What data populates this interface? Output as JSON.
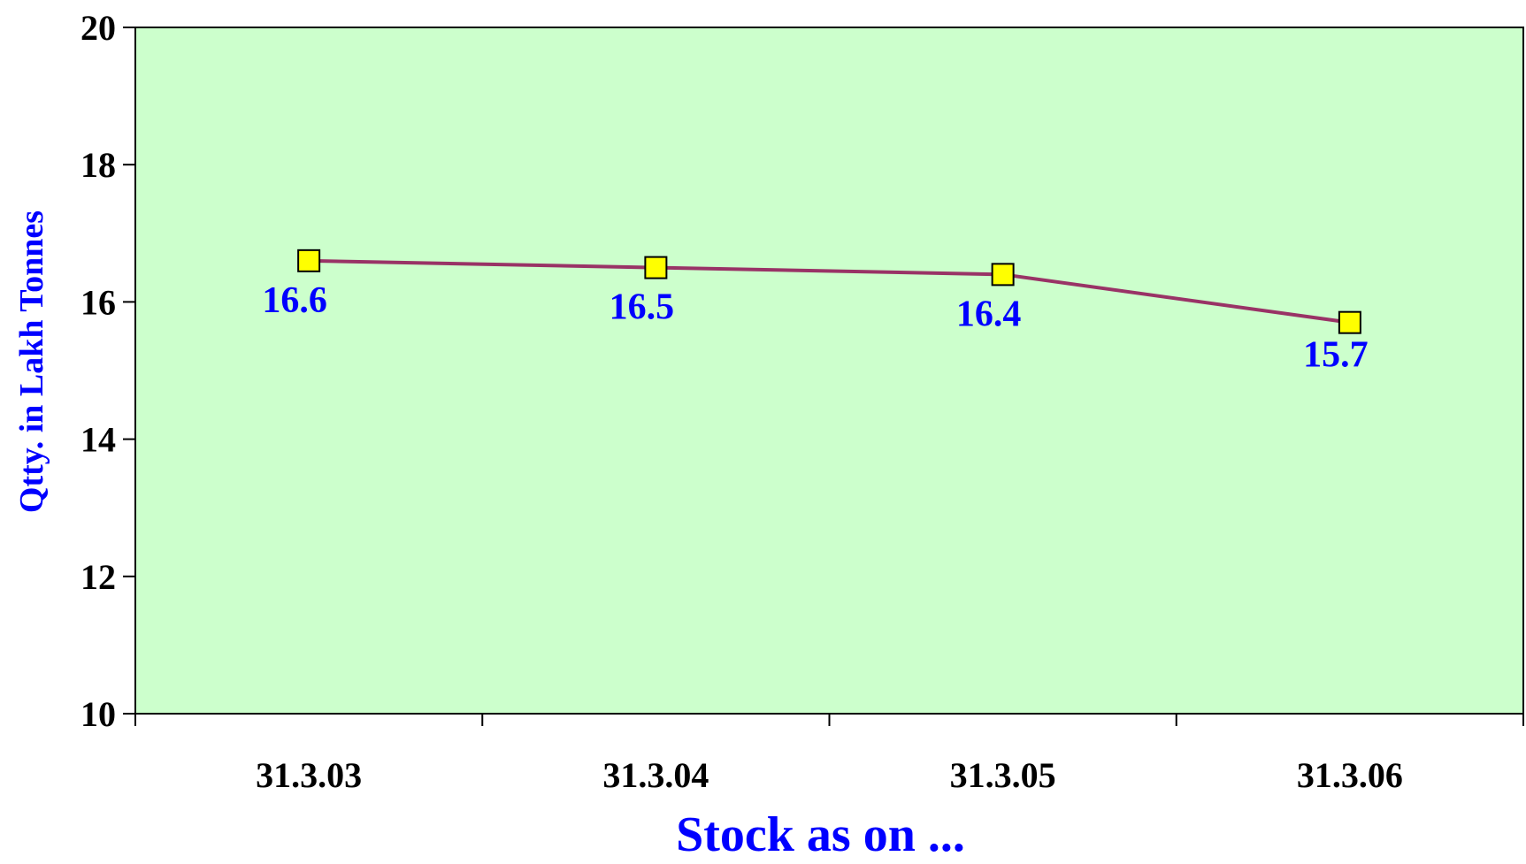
{
  "chart_data": {
    "type": "line",
    "title": "",
    "xlabel": "Stock as on ...",
    "ylabel": "Qtty. in Lakh Tonnes",
    "categories": [
      "31.3.03",
      "31.3.04",
      "31.3.05",
      "31.3.06"
    ],
    "series": [
      {
        "values": [
          16.6,
          16.5,
          16.4,
          15.7
        ],
        "data_labels": [
          "16.6",
          "16.5",
          "16.4",
          "15.7"
        ]
      }
    ],
    "ylim": [
      10,
      20
    ],
    "yticks": [
      "10",
      "12",
      "14",
      "16",
      "18",
      "20"
    ],
    "grid": false,
    "legend": "none"
  },
  "colors": {
    "plot_background": "#ccffcc",
    "line": "#993366",
    "marker_fill": "#ffff00",
    "marker_stroke": "#000000",
    "data_label": "#0000ff",
    "axis_title": "#0000ff",
    "tick_label": "#000000",
    "axis_line": "#000000"
  }
}
